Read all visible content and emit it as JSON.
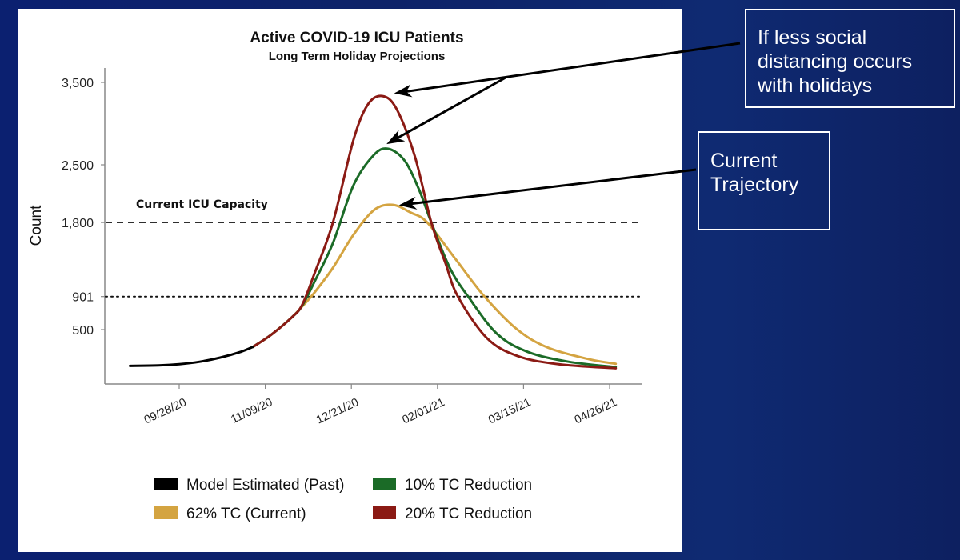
{
  "chart_data": {
    "type": "line",
    "title": "Active COVID-19 ICU Patients",
    "subtitle": "Long Term Holiday Projections",
    "xlabel": "",
    "ylabel": "Count",
    "x_unit": "days since 09/28/20",
    "xlim": [
      -24,
      213
    ],
    "ylim": [
      0,
      3500
    ],
    "grid": false,
    "yticks": [
      {
        "value": 3500,
        "label": "3,500"
      },
      {
        "value": 2500,
        "label": "2,500"
      },
      {
        "value": 1800,
        "label": "1,800"
      },
      {
        "value": 901,
        "label": "901"
      },
      {
        "value": 500,
        "label": "500"
      }
    ],
    "xticks": [
      {
        "day": 0,
        "label": "09/28/20"
      },
      {
        "day": 42,
        "label": "11/09/20"
      },
      {
        "day": 84,
        "label": "12/21/20"
      },
      {
        "day": 126,
        "label": "02/01/21"
      },
      {
        "day": 168,
        "label": "03/15/21"
      },
      {
        "day": 210,
        "label": "04/26/21"
      }
    ],
    "reference_lines": [
      {
        "name": "icu-capacity",
        "value": 1800,
        "style": "dashed",
        "label": "Current ICU Capacity"
      },
      {
        "name": "threshold-901",
        "value": 901,
        "style": "dotted",
        "label": ""
      }
    ],
    "series": [
      {
        "name": "Model Estimated (Past)",
        "color": "#000000",
        "points": [
          [
            -24,
            60
          ],
          [
            -10,
            65
          ],
          [
            0,
            80
          ],
          [
            10,
            110
          ],
          [
            20,
            160
          ],
          [
            30,
            230
          ],
          [
            36,
            290
          ]
        ]
      },
      {
        "name": "62% TC (Current)",
        "color": "#D4A441",
        "points": [
          [
            36,
            290
          ],
          [
            45,
            440
          ],
          [
            55,
            650
          ],
          [
            60,
            780
          ],
          [
            66,
            950
          ],
          [
            75,
            1250
          ],
          [
            85,
            1650
          ],
          [
            95,
            1950
          ],
          [
            104,
            2015
          ],
          [
            113,
            1920
          ],
          [
            121,
            1800
          ],
          [
            135,
            1350
          ],
          [
            149,
            900
          ],
          [
            165,
            500
          ],
          [
            180,
            280
          ],
          [
            200,
            140
          ],
          [
            213,
            85
          ]
        ]
      },
      {
        "name": "10% TC Reduction",
        "color": "#1B6B27",
        "points": [
          [
            36,
            290
          ],
          [
            45,
            440
          ],
          [
            55,
            650
          ],
          [
            60,
            790
          ],
          [
            66,
            1080
          ],
          [
            75,
            1550
          ],
          [
            85,
            2250
          ],
          [
            95,
            2620
          ],
          [
            102,
            2694
          ],
          [
            110,
            2550
          ],
          [
            117,
            2200
          ],
          [
            123,
            1800
          ],
          [
            132,
            1250
          ],
          [
            141,
            900
          ],
          [
            155,
            450
          ],
          [
            170,
            230
          ],
          [
            190,
            110
          ],
          [
            213,
            45
          ]
        ]
      },
      {
        "name": "20% TC Reduction",
        "color": "#8B1A14",
        "points": [
          [
            36,
            290
          ],
          [
            45,
            440
          ],
          [
            55,
            650
          ],
          [
            60,
            800
          ],
          [
            66,
            1180
          ],
          [
            75,
            1800
          ],
          [
            85,
            2800
          ],
          [
            92,
            3230
          ],
          [
            99,
            3335
          ],
          [
            106,
            3180
          ],
          [
            115,
            2600
          ],
          [
            123,
            1800
          ],
          [
            130,
            1300
          ],
          [
            136,
            900
          ],
          [
            150,
            400
          ],
          [
            165,
            180
          ],
          [
            185,
            80
          ],
          [
            213,
            30
          ]
        ]
      }
    ],
    "legend": {
      "placement": "bottom",
      "entries": [
        {
          "label": "Model Estimated (Past)",
          "color": "#000000"
        },
        {
          "label": "10% TC Reduction",
          "color": "#1B6B27"
        },
        {
          "label": "62% TC (Current)",
          "color": "#D4A441"
        },
        {
          "label": "20% TC Reduction",
          "color": "#8B1A14"
        }
      ]
    },
    "annotations": [
      {
        "text": "If less social distancing occurs with holidays",
        "points_to": [
          "20% TC Reduction peak",
          "10% TC Reduction peak"
        ]
      },
      {
        "text": "Current Trajectory",
        "points_to": [
          "62% TC (Current) peak"
        ]
      }
    ]
  },
  "callouts": {
    "holidays": {
      "lines": [
        "If less social",
        "distancing occurs",
        "with holidays"
      ]
    },
    "current": {
      "lines": [
        "Current",
        "Trajectory"
      ]
    }
  },
  "colors": {
    "background": "#0B2070",
    "panel": "#FFFFFF"
  }
}
